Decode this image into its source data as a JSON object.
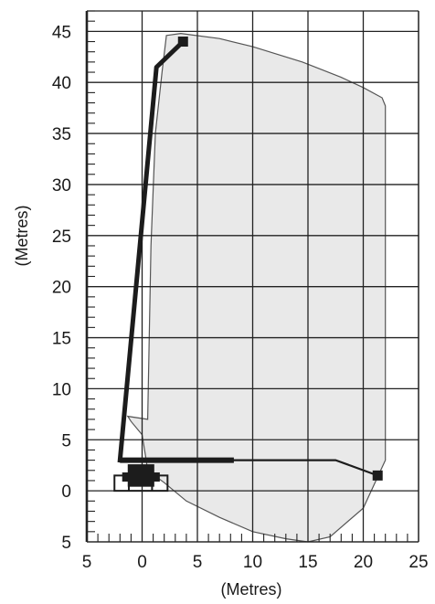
{
  "chart_data": {
    "type": "line",
    "title": "",
    "xlabel": "(Metres)",
    "ylabel": "(Metres)",
    "xlim": [
      -5,
      25
    ],
    "ylim": [
      -5,
      47
    ],
    "x_ticks": [
      -5,
      0,
      5,
      10,
      15,
      20,
      25
    ],
    "x_tick_labels": [
      "5",
      "0",
      "5",
      "10",
      "15",
      "20",
      "25"
    ],
    "y_ticks": [
      -5,
      0,
      5,
      10,
      15,
      20,
      25,
      30,
      35,
      40,
      45
    ],
    "y_tick_labels": [
      "5",
      "0",
      "5",
      "10",
      "15",
      "20",
      "25",
      "30",
      "35",
      "40",
      "45"
    ],
    "grid": true,
    "colors": {
      "envelope_fill": "#e9e9e9",
      "envelope_stroke": "#555555",
      "boom": "#1c1c1c",
      "grid": "#222222"
    },
    "working_envelope": {
      "x": [
        2.2,
        3.5,
        7,
        10,
        14.5,
        18,
        20,
        21.7,
        22,
        22,
        20,
        17,
        15,
        13,
        10,
        7,
        4,
        2,
        0.5,
        0.3,
        0,
        -1,
        -1.3,
        0.5,
        0.8,
        1.2,
        1.8,
        2.2
      ],
      "y": [
        44.6,
        44.8,
        44.3,
        43.5,
        42,
        40.5,
        39.5,
        38.5,
        37.7,
        3,
        -1.7,
        -4.5,
        -5,
        -4.7,
        -4,
        -2.6,
        -1,
        0.8,
        2,
        3.5,
        5.5,
        6.8,
        7.3,
        7,
        24,
        35,
        41,
        44.6
      ]
    },
    "boom_vertical": {
      "x": [
        -2,
        1.3,
        3.7
      ],
      "y": [
        3,
        41.5,
        44
      ]
    },
    "boom_horizontal": {
      "x": [
        -2,
        11,
        17.5,
        21.3
      ],
      "y": [
        3,
        3,
        3,
        1.5
      ]
    },
    "boom_base_section": {
      "x": [
        -2,
        8.3
      ],
      "y": [
        3,
        3
      ]
    },
    "platforms": [
      {
        "x": 3.7,
        "y": 44
      },
      {
        "x": 21.3,
        "y": 1.5
      }
    ]
  }
}
